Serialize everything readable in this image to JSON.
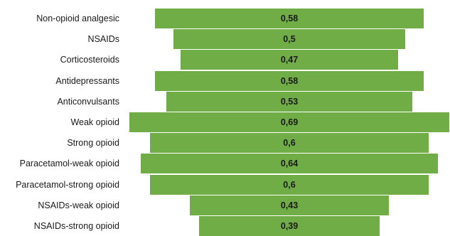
{
  "chart_data": {
    "type": "bar",
    "orientation": "horizontal-centered (funnel)",
    "categories": [
      "Non-opioid analgesic",
      "NSAIDs",
      "Corticosteroids",
      "Antidepressants",
      "Anticonvulsants",
      "Weak opioid",
      "Strong opioid",
      "Paracetamol-weak opioid",
      "Paracetamol-strong opioid",
      "NSAIDs-weak opioid",
      "NSAIDs-strong opioid"
    ],
    "values": [
      0.58,
      0.5,
      0.47,
      0.58,
      0.53,
      0.69,
      0.6,
      0.64,
      0.6,
      0.43,
      0.39
    ],
    "value_labels": [
      "0,58",
      "0,5",
      "0,47",
      "0,58",
      "0,53",
      "0,69",
      "0,6",
      "0,64",
      "0,6",
      "0,43",
      "0,39"
    ],
    "title": "",
    "xlabel": "",
    "ylabel": "",
    "grid": false,
    "legend": "none",
    "bar_color": "#70ad47"
  }
}
